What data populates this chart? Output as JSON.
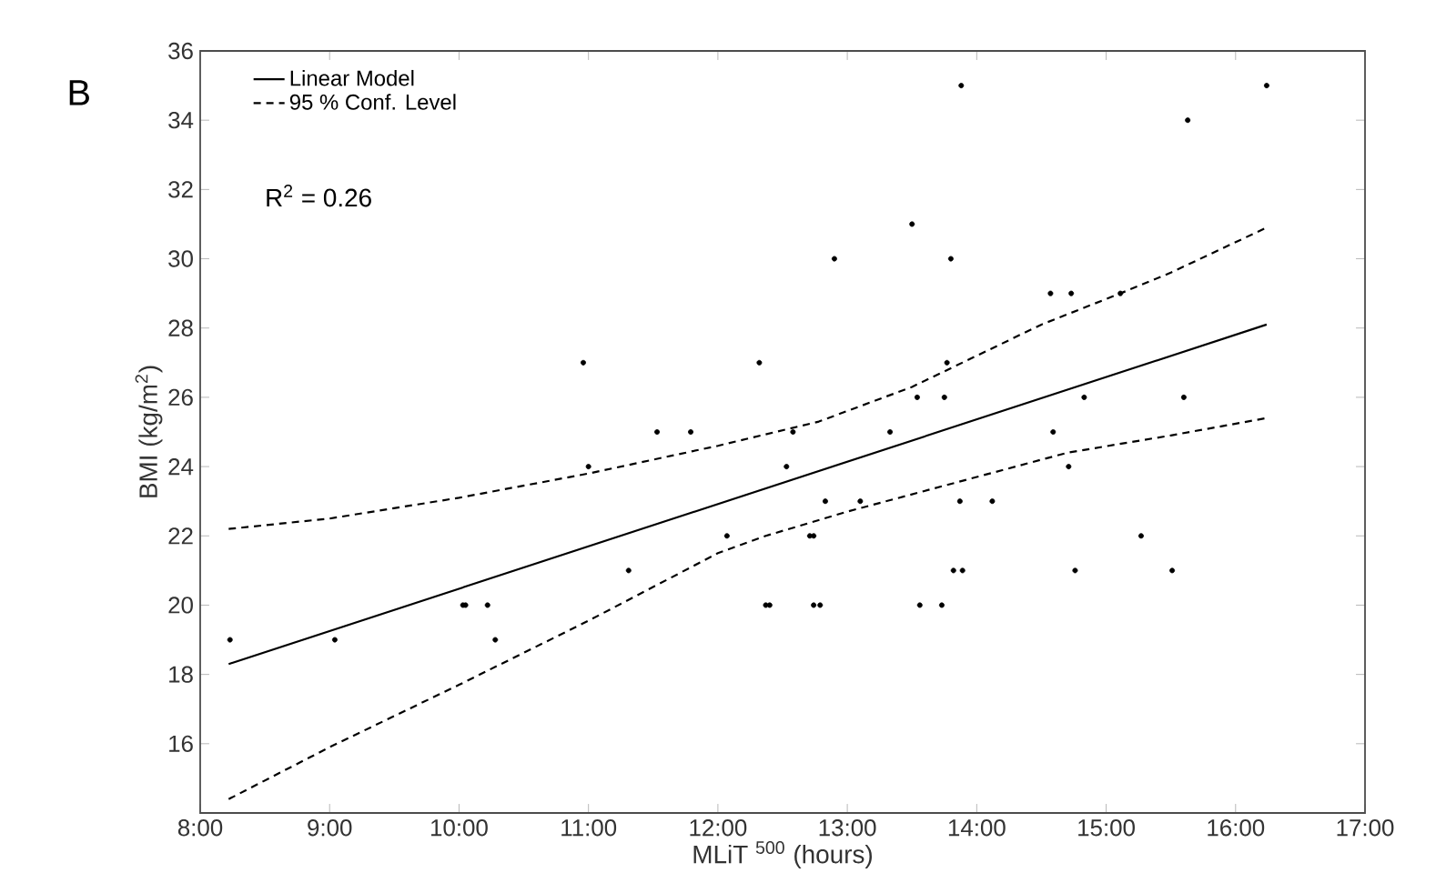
{
  "chart_data": {
    "type": "scatter",
    "xlabel": "MLiT $^{500}$ (hours)",
    "ylabel": "BMI (kg/m$^{2}$)",
    "annotations": [
      "B",
      "R$^{2}$ = 0.26"
    ],
    "xlim": [
      8,
      17
    ],
    "ylim": [
      14,
      36
    ],
    "xticks": [
      {
        "value": 8,
        "label": "8:00"
      },
      {
        "value": 9,
        "label": "9:00"
      },
      {
        "value": 10,
        "label": "10:00"
      },
      {
        "value": 11,
        "label": "11:00"
      },
      {
        "value": 12,
        "label": "12:00"
      },
      {
        "value": 13,
        "label": "13:00"
      },
      {
        "value": 14,
        "label": "14:00"
      },
      {
        "value": 15,
        "label": "15:00"
      },
      {
        "value": 16,
        "label": "16:00"
      },
      {
        "value": 17,
        "label": "17:00"
      }
    ],
    "yticks": [
      {
        "value": 14,
        "label": null
      },
      16,
      18,
      20,
      22,
      24,
      26,
      28,
      30,
      32,
      34,
      36
    ],
    "grid": false,
    "legend": "top left",
    "series": [
      {
        "color": "#000000",
        "marker": "circle",
        "x": [
          8.23,
          9.04,
          10.03,
          10.05,
          10.22,
          10.28,
          11.0,
          11.31,
          12.07,
          12.37,
          12.4,
          12.53,
          12.71,
          12.74,
          12.74,
          10.96,
          11.53,
          11.79,
          12.32,
          12.58,
          12.83,
          13.1,
          12.79,
          13.56,
          13.73,
          13.82,
          13.89,
          13.87,
          14.12,
          14.71,
          14.76,
          15.27,
          15.51,
          13.88,
          16.24,
          15.63,
          13.5,
          12.9,
          13.8,
          14.57,
          14.73,
          15.11,
          13.77,
          13.54,
          13.75,
          14.83,
          15.6,
          13.33,
          14.59
        ],
        "values": [
          19,
          19,
          20,
          20,
          20,
          19,
          24,
          21,
          22,
          20,
          20,
          24,
          22,
          22,
          20,
          27,
          25,
          25,
          27,
          25,
          23,
          23,
          20,
          20,
          20,
          21,
          21,
          23,
          23,
          24,
          21,
          22,
          21,
          35,
          35,
          34,
          31,
          30,
          30,
          29,
          29,
          29,
          27,
          26,
          26,
          26,
          26,
          25,
          25
        ]
      },
      {
        "type": "line",
        "name": "Linear Model",
        "color": "#000000",
        "line_style": "solid",
        "x": [
          8.22,
          16.24
        ],
        "values": [
          18.3,
          28.1
        ]
      },
      {
        "type": "line",
        "name": "95 % Conf. Level",
        "color": "#000000",
        "line_style": "dashed",
        "x": [
          8.22,
          9,
          10,
          11,
          12,
          12.78,
          13.5,
          14,
          14.5,
          15.11,
          15.5,
          16.24
        ],
        "values": [
          22.2,
          22.5,
          23.1,
          23.8,
          24.6,
          25.3,
          26.3,
          27.2,
          28.1,
          29.0,
          29.6,
          30.9
        ]
      },
      {
        "type": "line",
        "color": "#000000",
        "line_style": "dashed",
        "x": [
          8.22,
          9,
          10,
          11,
          12,
          12.37,
          13,
          14,
          14.7,
          15.5,
          16.24
        ],
        "values": [
          14.4,
          15.9,
          17.7,
          19.55,
          21.5,
          22.0,
          22.7,
          23.7,
          24.4,
          24.9,
          25.4
        ]
      }
    ]
  }
}
